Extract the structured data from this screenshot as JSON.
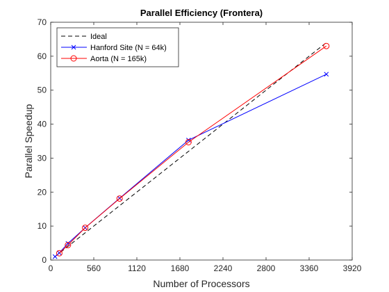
{
  "chart_data": {
    "type": "line",
    "title": "Parallel Efficiency (Frontera)",
    "xlabel": "Number of Processors",
    "ylabel": "Parallel Speedup",
    "xlim": [
      0,
      3920
    ],
    "ylim": [
      0,
      70
    ],
    "xticks": [
      0,
      560,
      1120,
      1680,
      2240,
      2800,
      3360,
      3920
    ],
    "yticks": [
      0,
      10,
      20,
      30,
      40,
      50,
      60,
      70
    ],
    "grid": false,
    "legend_position": "top-left",
    "series": [
      {
        "name": "Ideal",
        "color": "#000000",
        "line_style": "dashed",
        "marker": "none",
        "x": [
          56,
          3584
        ],
        "y": [
          1,
          64
        ]
      },
      {
        "name": "Hanford Site (N = 64k)",
        "color": "#0000ff",
        "line_style": "solid",
        "marker": "x",
        "x": [
          56,
          112,
          224,
          448,
          896,
          1792,
          3584
        ],
        "y": [
          1,
          2.1,
          4.9,
          9.5,
          18.2,
          35.3,
          54.7
        ]
      },
      {
        "name": "Aorta (N = 165k)",
        "color": "#ff0000",
        "line_style": "solid",
        "marker": "circle",
        "x": [
          112,
          224,
          448,
          896,
          1792,
          3584
        ],
        "y": [
          2,
          4.4,
          9.5,
          18.1,
          34.7,
          63
        ]
      }
    ]
  }
}
